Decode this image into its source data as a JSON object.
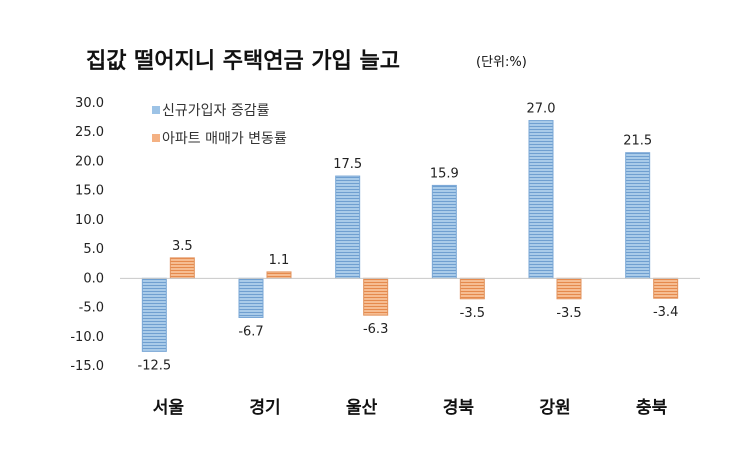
{
  "title": "집값 떨어지니 주택연금 가입 늘고",
  "unit": "(단위:%)",
  "chart_data": {
    "type": "bar",
    "title": "집값 떨어지니 주택연금 가입 늘고",
    "unit": "(단위:%)",
    "categories": [
      "서울",
      "경기",
      "울산",
      "경북",
      "강원",
      "충북"
    ],
    "series": [
      {
        "name": "신규가입자 증감률",
        "color": "#9dc3e6",
        "values": [
          -12.5,
          -6.7,
          17.5,
          15.9,
          27.0,
          21.5
        ]
      },
      {
        "name": "아파트 매매가 변동률",
        "color": "#f4b183",
        "values": [
          3.5,
          1.1,
          -6.3,
          -3.5,
          -3.5,
          -3.4
        ]
      }
    ],
    "data_labels": [
      [
        "-12.5",
        "-6.7",
        "17.5",
        "15.9",
        "27.0",
        "21.5"
      ],
      [
        "3.5",
        "1.1",
        "-6.3",
        "-3.5",
        "-3.5",
        "-3.4"
      ]
    ],
    "yticks": [
      "30.0",
      "25.0",
      "20.0",
      "15.0",
      "10.0",
      "5.0",
      "0.0",
      "-5.0",
      "-10.0",
      "-15.0"
    ],
    "ylim": [
      -15,
      30
    ],
    "legend_position": "top-left",
    "grid": false
  }
}
